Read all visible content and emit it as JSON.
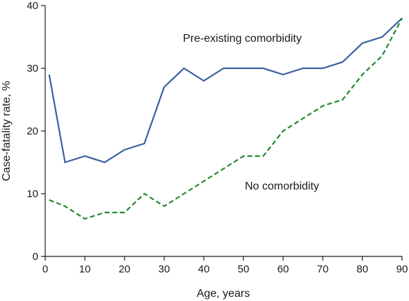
{
  "chart_data": {
    "type": "line",
    "title": "",
    "xlabel": "Age, years",
    "ylabel": "Case-fatality rate, %",
    "xlim": [
      0,
      90
    ],
    "ylim": [
      0,
      40
    ],
    "x_ticks": [
      0,
      10,
      20,
      30,
      40,
      50,
      60,
      70,
      80,
      90
    ],
    "y_ticks": [
      0,
      10,
      20,
      30,
      40
    ],
    "grid": false,
    "legend": "none",
    "series": [
      {
        "name": "Pre-existing comorbidity",
        "color": "#3a5fa0",
        "style": "solid",
        "x": [
          1,
          5,
          10,
          15,
          20,
          25,
          30,
          35,
          40,
          45,
          50,
          55,
          60,
          65,
          70,
          75,
          80,
          85,
          90
        ],
        "y": [
          29,
          15,
          16,
          15,
          17,
          18,
          27,
          30,
          28,
          30,
          30,
          30,
          29,
          30,
          30,
          31,
          34,
          35,
          38
        ]
      },
      {
        "name": "No comorbidity",
        "color": "#1f8a2e",
        "style": "dashed",
        "x": [
          1,
          5,
          10,
          15,
          20,
          25,
          30,
          35,
          40,
          45,
          50,
          55,
          60,
          65,
          70,
          75,
          80,
          85,
          90
        ],
        "y": [
          9,
          8,
          6,
          7,
          7,
          10,
          8,
          10,
          12,
          14,
          16,
          16,
          20,
          22,
          24,
          25,
          29,
          32,
          38
        ]
      }
    ]
  }
}
